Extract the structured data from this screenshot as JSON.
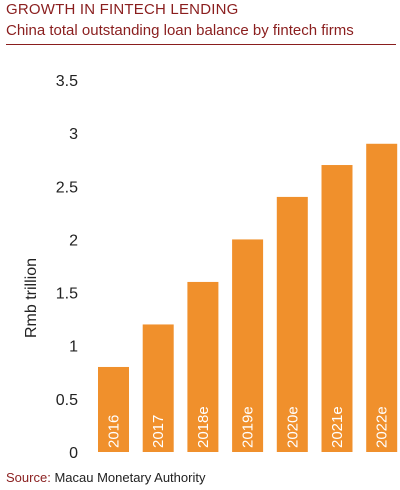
{
  "header": {
    "title": "GROWTH IN FINTECH LENDING",
    "subtitle": "China total outstanding loan balance by fintech firms"
  },
  "footer": {
    "source_label": "Source:",
    "source_value": "Macau Monetary Authority"
  },
  "colors": {
    "bar": "#f0902c",
    "accent": "#8a1e1e",
    "text": "#222222",
    "bar_label": "#ffffff"
  },
  "chart_data": {
    "type": "bar",
    "categories": [
      "2016",
      "2017",
      "2018e",
      "2019e",
      "2020e",
      "2021e",
      "2022e"
    ],
    "values": [
      0.8,
      1.2,
      1.6,
      2.0,
      2.4,
      2.7,
      2.9
    ],
    "title": "GROWTH IN FINTECH LENDING",
    "subtitle": "China total outstanding loan balance by fintech firms",
    "xlabel": "",
    "ylabel": "Rmb trillion",
    "ylim": [
      0,
      3.5
    ],
    "yticks": [
      "0",
      "0.5",
      "1",
      "1.5",
      "2",
      "2.5",
      "3",
      "3.5"
    ],
    "grid": false,
    "legend": "none"
  }
}
